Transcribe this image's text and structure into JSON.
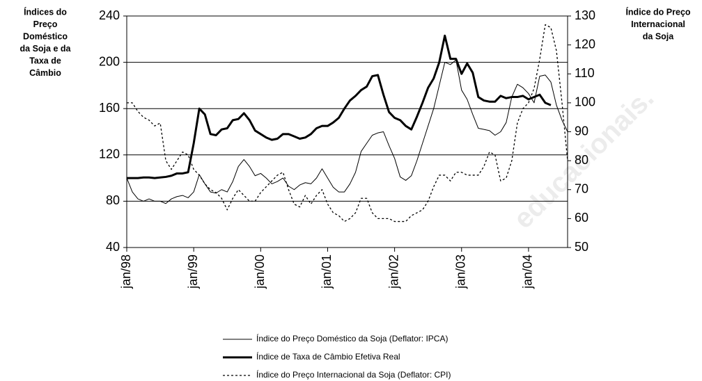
{
  "chart_data": {
    "type": "line",
    "y_axis_title": [
      "Índices do",
      "Preço",
      "Doméstico",
      "da Soja e da",
      "Taxa de",
      "Câmbio"
    ],
    "y2_axis_title": [
      "Índice do Preço",
      "Internacional",
      "da Soja"
    ],
    "watermark": "educacionais.",
    "categories": [
      "jan/98",
      null,
      null,
      null,
      null,
      null,
      null,
      null,
      null,
      null,
      null,
      null,
      "jan/99",
      null,
      null,
      null,
      null,
      null,
      null,
      null,
      null,
      null,
      null,
      null,
      "jan/00",
      null,
      null,
      null,
      null,
      null,
      null,
      null,
      null,
      null,
      null,
      null,
      "jan/01",
      null,
      null,
      null,
      null,
      null,
      null,
      null,
      null,
      null,
      null,
      null,
      "jan/02",
      null,
      null,
      null,
      null,
      null,
      null,
      null,
      null,
      null,
      null,
      null,
      "jan/03",
      null,
      null,
      null,
      null,
      null,
      null,
      null,
      null,
      null,
      null,
      null,
      "jan/04",
      null,
      null,
      null,
      null,
      null,
      null,
      null
    ],
    "ylim": [
      40,
      240
    ],
    "yticks": [
      40,
      80,
      120,
      160,
      200,
      240
    ],
    "y2lim": [
      50,
      130
    ],
    "y2ticks": [
      50,
      60,
      70,
      80,
      90,
      100,
      110,
      120,
      130
    ],
    "grid": true,
    "series": [
      {
        "name": "Índice do Preço Doméstico da Soja (Deflator: IPCA)",
        "color": "#000000",
        "line_width": 1,
        "dash": "solid",
        "values": [
          100,
          88,
          82,
          80,
          82,
          80,
          80,
          78,
          82,
          84,
          85,
          83,
          88,
          103,
          95,
          88,
          87,
          90,
          88,
          97,
          110,
          116,
          110,
          102,
          104,
          100,
          95,
          97,
          100,
          93,
          90,
          94,
          96,
          95,
          100,
          108,
          100,
          92,
          88,
          88,
          95,
          105,
          123,
          130,
          137,
          139,
          140,
          128,
          117,
          101,
          98,
          102,
          115,
          130,
          145,
          160,
          180,
          200,
          198,
          202,
          176,
          168,
          155,
          143,
          142,
          141,
          137,
          140,
          148,
          170,
          181,
          178,
          173,
          165,
          188,
          189,
          183,
          163,
          150,
          140
        ]
      },
      {
        "name": "Índice de Taxa de Câmbio Efetiva Real",
        "color": "#000000",
        "line_width": 3,
        "dash": "solid",
        "values": [
          100,
          100,
          100,
          100.5,
          100.5,
          100,
          100.5,
          101,
          102,
          104,
          104,
          105,
          130,
          160,
          155,
          138,
          137,
          142,
          143,
          150,
          151,
          156,
          150,
          141,
          138,
          135,
          133,
          134,
          138,
          138,
          136,
          134,
          135,
          138,
          143,
          145,
          145,
          148,
          152,
          160,
          167,
          171,
          176,
          179,
          188,
          189,
          172,
          157,
          152,
          150,
          145,
          142,
          153,
          165,
          178,
          186,
          200,
          223,
          203,
          203,
          190,
          199,
          191,
          170,
          167,
          166,
          166,
          171,
          169,
          170,
          170,
          171,
          168,
          170,
          172,
          165,
          163,
          null,
          null,
          null
        ]
      },
      {
        "name": "Índice do Preço Internacional da Soja (Deflator: CPI)",
        "color": "#000000",
        "line_width": 1.3,
        "dash": "dotted",
        "axis": "y2",
        "values": [
          100,
          100,
          97,
          95,
          94,
          92,
          93,
          80,
          77,
          80,
          83,
          82,
          77,
          75,
          72,
          70,
          69,
          67,
          63,
          67,
          70,
          68,
          66,
          66,
          69,
          71,
          73,
          75,
          76,
          70,
          65,
          64,
          68,
          65,
          68,
          70,
          65,
          62,
          61,
          59,
          60,
          62,
          67,
          67,
          62,
          60,
          60,
          60,
          59,
          59,
          59,
          61,
          62,
          63,
          66,
          71,
          75,
          75,
          73,
          76,
          76,
          75,
          75,
          75,
          78,
          83,
          82,
          73,
          74,
          80,
          93,
          98,
          100,
          105,
          115,
          127,
          126,
          118,
          100,
          80
        ]
      }
    ]
  }
}
